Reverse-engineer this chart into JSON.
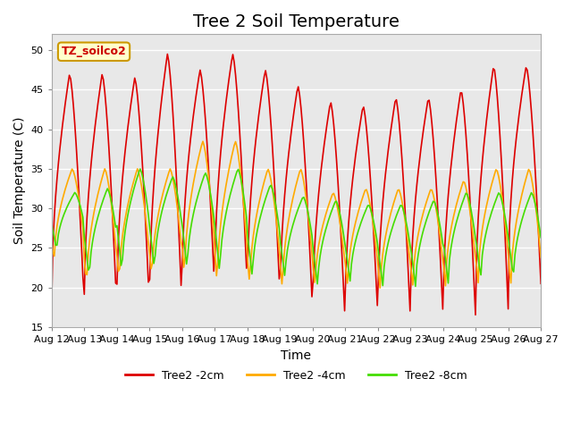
{
  "title": "Tree 2 Soil Temperature",
  "xlabel": "Time",
  "ylabel": "Soil Temperature (C)",
  "ylim": [
    15,
    52
  ],
  "yticks": [
    15,
    20,
    25,
    30,
    35,
    40,
    45,
    50
  ],
  "annotation_text": "TZ_soilco2",
  "annotation_bg": "#ffffcc",
  "annotation_border": "#cc9900",
  "legend_labels": [
    "Tree2 -2cm",
    "Tree2 -4cm",
    "Tree2 -8cm"
  ],
  "legend_colors": [
    "#dd0000",
    "#ffaa00",
    "#44dd00"
  ],
  "line_colors": [
    "#dd0000",
    "#ffaa00",
    "#44dd00"
  ],
  "x_tick_labels": [
    "Aug 12",
    "Aug 13",
    "Aug 14",
    "Aug 15",
    "Aug 16",
    "Aug 17",
    "Aug 18",
    "Aug 19",
    "Aug 20",
    "Aug 21",
    "Aug 22",
    "Aug 23",
    "Aug 24",
    "Aug 25",
    "Aug 26",
    "Aug 27"
  ],
  "background_color": "#ffffff",
  "plot_bg": "#e8e8e8",
  "grid_color": "#ffffff",
  "title_fontsize": 14,
  "label_fontsize": 10,
  "tick_fontsize": 8
}
